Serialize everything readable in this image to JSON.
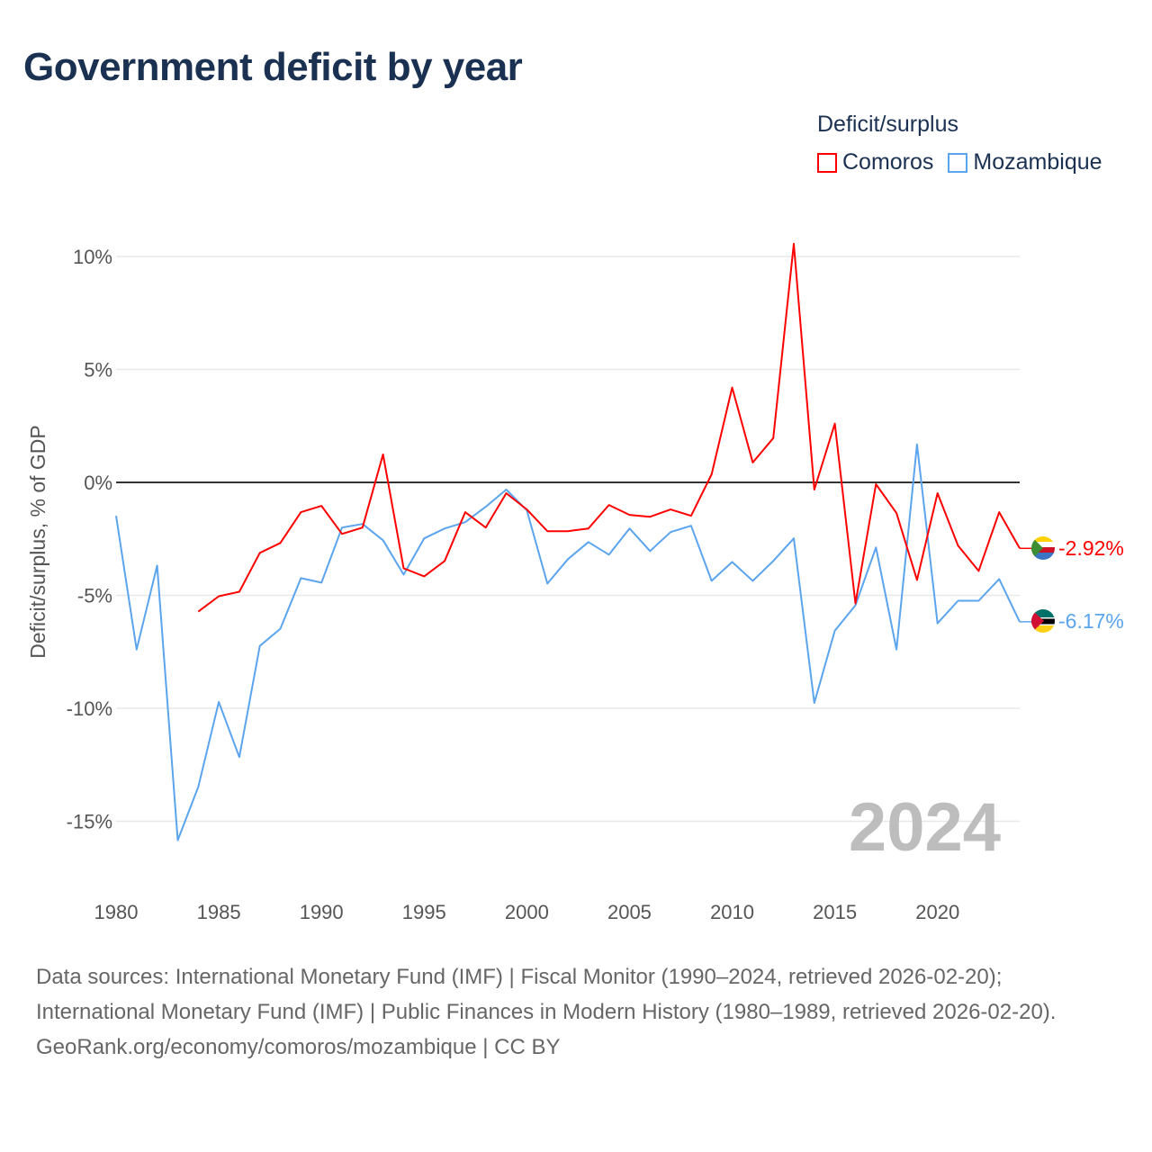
{
  "title": "Government deficit by year",
  "legend": {
    "title": "Deficit/surplus",
    "items": [
      {
        "name": "Comoros",
        "color": "#ff0000"
      },
      {
        "name": "Mozambique",
        "color": "#5ba4ee"
      }
    ]
  },
  "chart_data": {
    "type": "line",
    "title": "Government deficit by year",
    "xlabel": "",
    "ylabel": "Deficit/surplus, % of GDP",
    "xlim": [
      1980,
      2024
    ],
    "ylim": [
      -17,
      11
    ],
    "x_ticks": [
      "1980",
      "1985",
      "1990",
      "1995",
      "2000",
      "2005",
      "2010",
      "2015",
      "2020"
    ],
    "x_tick_values": [
      1980,
      1985,
      1990,
      1995,
      2000,
      2005,
      2010,
      2015,
      2020
    ],
    "y_ticks": [
      "10%",
      "5%",
      "0%",
      "-5%",
      "-10%",
      "-15%"
    ],
    "y_tick_values": [
      10,
      5,
      0,
      -5,
      -10,
      -15
    ],
    "year_label": "2024",
    "series": [
      {
        "name": "Comoros",
        "color": "#ff0000",
        "end_label": "-2.92%",
        "x": [
          1984,
          1985,
          1986,
          1987,
          1988,
          1989,
          1990,
          1991,
          1992,
          1993,
          1994,
          1995,
          1996,
          1997,
          1998,
          1999,
          2000,
          2001,
          2002,
          2003,
          2004,
          2005,
          2006,
          2007,
          2008,
          2009,
          2010,
          2011,
          2012,
          2013,
          2014,
          2015,
          2016,
          2017,
          2018,
          2019,
          2020,
          2021,
          2022,
          2023,
          2024
        ],
        "values": [
          -5.72,
          -5.04,
          -4.84,
          -3.12,
          -2.68,
          -1.32,
          -1.04,
          -2.28,
          -2.0,
          1.24,
          -3.8,
          -4.16,
          -3.48,
          -1.32,
          -2.0,
          -0.48,
          -1.2,
          -2.16,
          -2.16,
          -2.04,
          -1.0,
          -1.44,
          -1.52,
          -1.2,
          -1.48,
          0.36,
          4.2,
          0.88,
          1.96,
          10.56,
          -0.32,
          2.6,
          -5.36,
          -0.08,
          -1.36,
          -4.32,
          -0.48,
          -2.8,
          -3.92,
          -1.32,
          -2.92
        ]
      },
      {
        "name": "Mozambique",
        "color": "#5ba4ee",
        "end_label": "-6.17%",
        "x": [
          1980,
          1981,
          1982,
          1983,
          1984,
          1985,
          1986,
          1987,
          1988,
          1989,
          1990,
          1991,
          1992,
          1993,
          1994,
          1995,
          1996,
          1997,
          1998,
          1999,
          2000,
          2001,
          2002,
          2003,
          2004,
          2005,
          2006,
          2007,
          2008,
          2009,
          2010,
          2011,
          2012,
          2013,
          2014,
          2015,
          2016,
          2017,
          2018,
          2019,
          2020,
          2021,
          2022,
          2023,
          2024
        ],
        "values": [
          -1.48,
          -7.4,
          -3.68,
          -15.84,
          -13.48,
          -9.72,
          -12.16,
          -7.24,
          -6.48,
          -4.24,
          -4.44,
          -2.0,
          -1.84,
          -2.56,
          -4.08,
          -2.48,
          -2.04,
          -1.76,
          -1.08,
          -0.32,
          -1.24,
          -4.48,
          -3.4,
          -2.64,
          -3.2,
          -2.04,
          -3.04,
          -2.2,
          -1.92,
          -4.36,
          -3.52,
          -4.36,
          -3.48,
          -2.48,
          -9.76,
          -6.56,
          -5.44,
          -2.88,
          -7.4,
          1.68,
          -6.24,
          -5.24,
          -5.24,
          -4.28,
          -6.17
        ]
      }
    ]
  },
  "sources": {
    "line1": "Data sources: International Monetary Fund (IMF) | Fiscal Monitor (1990–2024, retrieved 2026-02-20); International Monetary Fund (IMF) | Public Finances in Modern History (1980–1989, retrieved 2026-02-20).",
    "line2": "GeoRank.org/economy/comoros/mozambique | CC BY"
  }
}
